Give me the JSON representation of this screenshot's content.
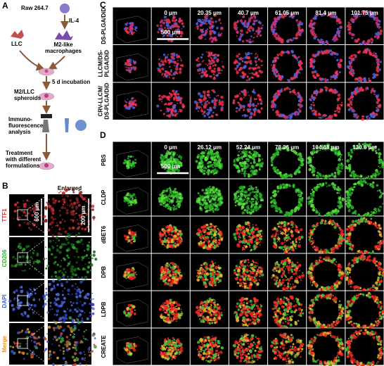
{
  "panel_a": {
    "label": "A",
    "cell_line": "Raw 264.7",
    "stimulus": "IL-4",
    "tumor_cell": "LLC",
    "macrophage": [
      "M2-like",
      "macrophages"
    ],
    "incubation": "5 d incubation",
    "spheroids": [
      "M2/LLC",
      "spheroids"
    ],
    "analysis": [
      "Immuno-",
      "fluorescence",
      "analysis"
    ],
    "treatment": [
      "Treatment",
      "with different",
      "formulations"
    ]
  },
  "panel_b": {
    "label": "B",
    "column_header": "Enlarged",
    "rows": [
      "TTF1",
      "CD206",
      "DAPI",
      "Merge"
    ],
    "scale_bar_whole": "600 μm",
    "scale_bar_enlarged": "200 μm"
  },
  "panel_c": {
    "label": "C",
    "depths": [
      "0 μm",
      "20.35 μm",
      "40.7 μm",
      "61.05 μm",
      "81.4 μm",
      "101.75 μm"
    ],
    "scale_bar": "500 μm",
    "rows": [
      [
        "DS-PLGA/DiD"
      ],
      [
        "LLCM/DS-",
        "PLGA/DiD"
      ],
      [
        "CRV-LLCM/",
        "DS-PLGA/DiD"
      ]
    ]
  },
  "panel_d": {
    "label": "D",
    "depths": [
      "0 μm",
      "26.12 μm",
      "52.24 μm",
      "78.36 μm",
      "104.48 μm",
      "130.6 μm"
    ],
    "scale_bar": "500 μm",
    "rows": [
      "PBS",
      "CLDP",
      "dBET6",
      "DPB",
      "LDPB",
      "CREATE"
    ]
  }
}
